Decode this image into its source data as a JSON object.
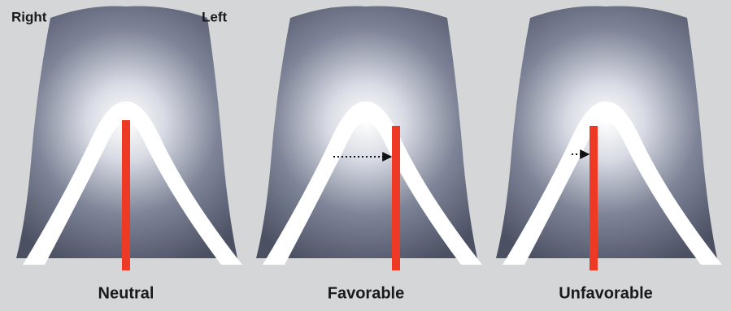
{
  "corner_labels": {
    "right": "Right",
    "left": "Left"
  },
  "panels": [
    {
      "label": "Neutral"
    },
    {
      "label": "Favorable"
    },
    {
      "label": "Unfavorable"
    }
  ]
}
